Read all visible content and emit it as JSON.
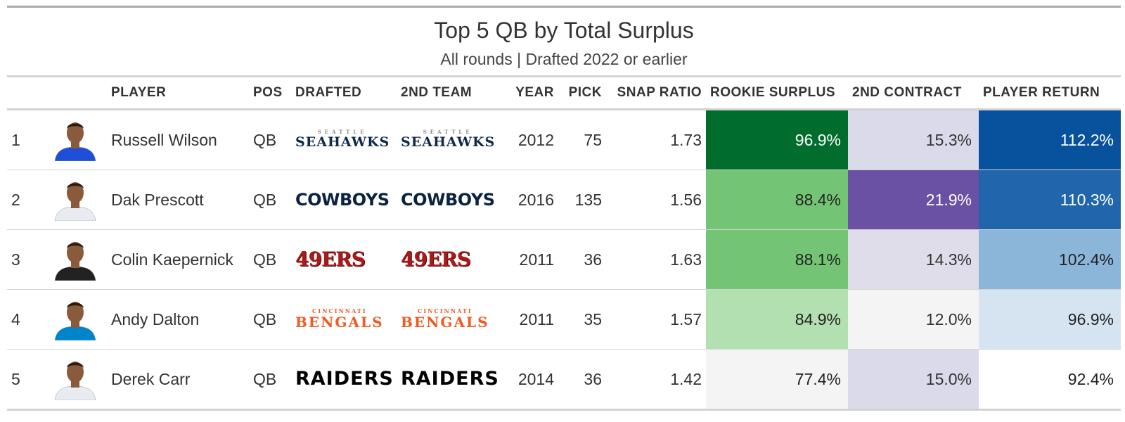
{
  "title": "Top 5 QB by Total Surplus",
  "subtitle": "All rounds | Drafted 2022 or earlier",
  "headers": {
    "rank": "",
    "headshot": "",
    "player": "PLAYER",
    "pos": "POS",
    "drafted": "DRAFTED",
    "second_team": "2ND TEAM",
    "year": "YEAR",
    "pick": "PICK",
    "snap_ratio": "SNAP RATIO",
    "rookie_surplus": "ROOKIE SURPLUS",
    "second_contract": "2ND CONTRACT",
    "player_return": "PLAYER RETURN"
  },
  "rows": [
    {
      "rank": "1",
      "player": "Russell Wilson",
      "pos": "QB",
      "drafted_logo": {
        "small": "SEATTLE",
        "main": "SEAHAWKS"
      },
      "second_team_logo": {
        "small": "SEATTLE",
        "main": "SEAHAWKS"
      },
      "year": "2012",
      "pick": "75",
      "snap_ratio": "1.73",
      "rookie_surplus": "96.9%",
      "second_contract": "15.3%",
      "player_return": "112.2%",
      "colors": {
        "rookie_bg": "#006d2c",
        "rookie_fg": "#ffffff",
        "contract_bg": "#dadaeb",
        "contract_fg": "#333333",
        "return_bg": "#08519c",
        "return_fg": "#ffffff"
      },
      "jersey_color": "#1e4fd6"
    },
    {
      "rank": "2",
      "player": "Dak Prescott",
      "pos": "QB",
      "drafted_logo": {
        "small": "",
        "main": "COWBOYS"
      },
      "second_team_logo": {
        "small": "",
        "main": "COWBOYS"
      },
      "year": "2016",
      "pick": "135",
      "snap_ratio": "1.56",
      "rookie_surplus": "88.4%",
      "second_contract": "21.9%",
      "player_return": "110.3%",
      "colors": {
        "rookie_bg": "#74c476",
        "rookie_fg": "#222222",
        "contract_bg": "#6a51a3",
        "contract_fg": "#ffffff",
        "return_bg": "#2166ac",
        "return_fg": "#ffffff"
      },
      "jersey_color": "#e8ecf1"
    },
    {
      "rank": "3",
      "player": "Colin Kaepernick",
      "pos": "QB",
      "drafted_logo": {
        "small": "",
        "main": "49ERS"
      },
      "second_team_logo": {
        "small": "",
        "main": "49ERS"
      },
      "year": "2011",
      "pick": "36",
      "snap_ratio": "1.63",
      "rookie_surplus": "88.1%",
      "second_contract": "14.3%",
      "player_return": "102.4%",
      "colors": {
        "rookie_bg": "#74c476",
        "rookie_fg": "#222222",
        "contract_bg": "#dedde9",
        "contract_fg": "#333333",
        "return_bg": "#8bb6d9",
        "return_fg": "#222222"
      },
      "jersey_color": "#222222"
    },
    {
      "rank": "4",
      "player": "Andy Dalton",
      "pos": "QB",
      "drafted_logo": {
        "small": "CINCINNATI",
        "main": "BENGALS"
      },
      "second_team_logo": {
        "small": "CINCINNATI",
        "main": "BENGALS"
      },
      "year": "2011",
      "pick": "35",
      "snap_ratio": "1.57",
      "rookie_surplus": "84.9%",
      "second_contract": "12.0%",
      "player_return": "96.9%",
      "colors": {
        "rookie_bg": "#b3e0b0",
        "rookie_fg": "#222222",
        "contract_bg": "#f4f4f4",
        "contract_fg": "#333333",
        "return_bg": "#d6e4f1",
        "return_fg": "#222222"
      },
      "jersey_color": "#0085ca"
    },
    {
      "rank": "5",
      "player": "Derek Carr",
      "pos": "QB",
      "drafted_logo": {
        "small": "",
        "main": "RAIDERS"
      },
      "second_team_logo": {
        "small": "",
        "main": "RAIDERS"
      },
      "year": "2014",
      "pick": "36",
      "snap_ratio": "1.42",
      "rookie_surplus": "77.4%",
      "second_contract": "15.0%",
      "player_return": "92.4%",
      "colors": {
        "rookie_bg": "#f4f4f4",
        "rookie_fg": "#222222",
        "contract_bg": "#dadaeb",
        "contract_fg": "#333333",
        "return_bg": "#ffffff",
        "return_fg": "#222222"
      },
      "jersey_color": "#e8ecf1"
    }
  ]
}
